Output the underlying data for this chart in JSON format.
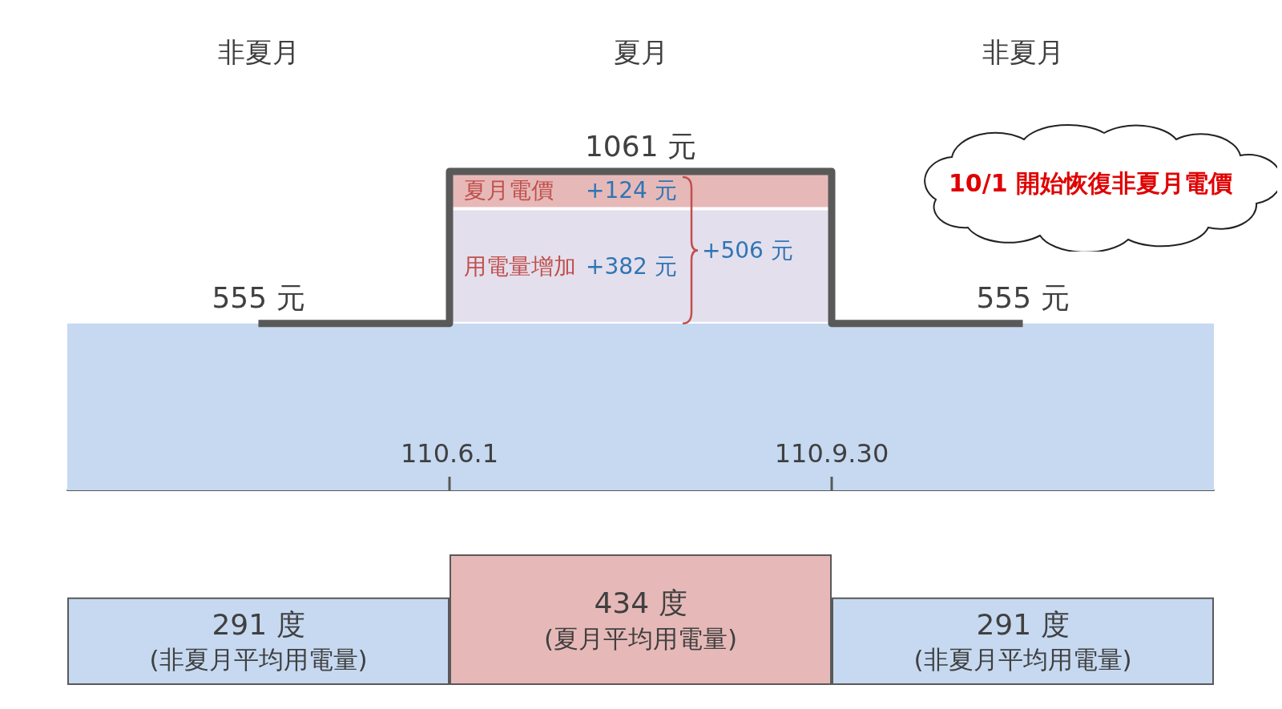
{
  "chart_data": [
    {
      "type": "bar",
      "categories": [
        "非夏月",
        "夏月",
        "非夏月"
      ],
      "stacked": true,
      "series": [
        {
          "color": "#c6d9f1",
          "values": [
            555,
            555,
            555
          ]
        },
        {
          "name": "用電量增加",
          "color": "#e4dfec",
          "values": [
            null,
            382,
            null
          ],
          "value_labels": [
            null,
            "+382 元",
            null
          ]
        },
        {
          "name": "夏月電價",
          "color": "#e6b9b8",
          "values": [
            null,
            124,
            null
          ],
          "value_labels": [
            null,
            "+124 元",
            null
          ]
        },
        {
          "type": "step",
          "color": "#595959",
          "values": [
            555,
            1061,
            555
          ],
          "value_labels": [
            "555 元",
            "1061 元",
            "555 元"
          ]
        }
      ],
      "annotations": [
        "+506 元",
        "110.6.1",
        "110.9.30",
        "10/1 開始恢復非夏月電價"
      ]
    },
    {
      "type": "bar",
      "categories": [
        "(非夏月平均用電量)",
        "(夏月平均用電量)",
        "(非夏月平均用電量)"
      ],
      "values": [
        291,
        434,
        291
      ],
      "colors": [
        "#c6d9f1",
        "#e6b9b8",
        "#c6d9f1"
      ],
      "value_labels": [
        "291 度",
        "434 度",
        "291 度"
      ]
    }
  ]
}
